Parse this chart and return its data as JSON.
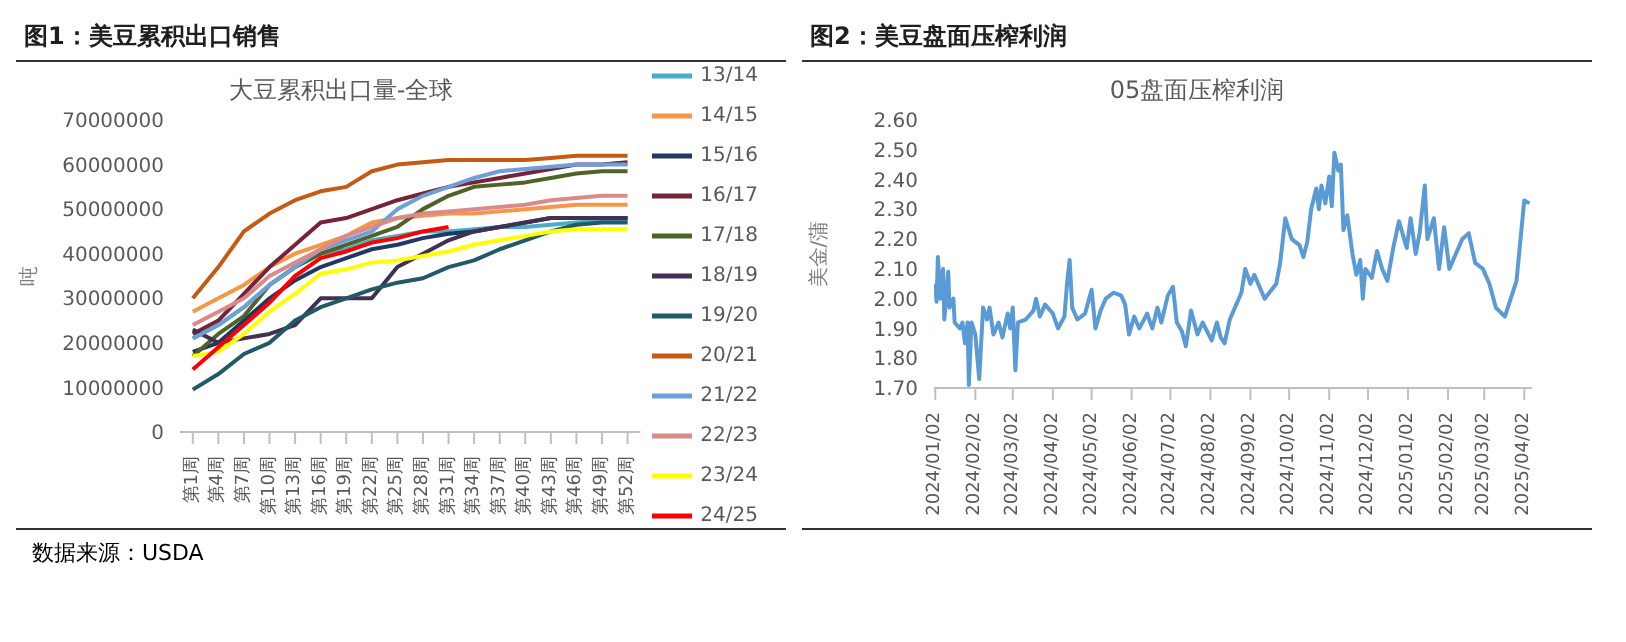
{
  "chart_data": [
    {
      "type": "line",
      "title": "图1：美豆累积出口销售",
      "subtitle": "大豆累积出口量-全球",
      "ylabel": "吨",
      "categories": [
        "第1周",
        "第4周",
        "第7周",
        "第10周",
        "第13周",
        "第16周",
        "第19周",
        "第22周",
        "第25周",
        "第28周",
        "第31周",
        "第34周",
        "第37周",
        "第40周",
        "第43周",
        "第46周",
        "第49周",
        "第52周"
      ],
      "series": [
        {
          "name": "13/14",
          "color": "#4bacc6",
          "values": [
            21000000,
            24000000,
            28000000,
            33000000,
            37000000,
            40000000,
            41000000,
            43000000,
            44000000,
            45000000,
            45000000,
            45500000,
            46000000,
            46000000,
            46500000,
            47000000,
            47500000,
            47500000
          ]
        },
        {
          "name": "14/15",
          "color": "#f79646",
          "values": [
            27000000,
            30000000,
            33000000,
            37000000,
            40000000,
            42000000,
            44000000,
            47000000,
            48000000,
            48500000,
            49000000,
            49000000,
            49500000,
            50000000,
            50500000,
            51000000,
            51000000,
            51000000
          ]
        },
        {
          "name": "15/16",
          "color": "#1f3864",
          "values": [
            18000000,
            20000000,
            25000000,
            30000000,
            34000000,
            37000000,
            39000000,
            41000000,
            42000000,
            43500000,
            44500000,
            45000000,
            46000000,
            47000000,
            48000000,
            48000000,
            48000000,
            48000000
          ]
        },
        {
          "name": "16/17",
          "color": "#772236",
          "values": [
            22000000,
            25000000,
            31000000,
            37000000,
            42000000,
            47000000,
            48000000,
            50000000,
            52000000,
            53500000,
            55000000,
            56000000,
            57000000,
            58000000,
            59000000,
            60000000,
            60000000,
            60500000
          ]
        },
        {
          "name": "17/18",
          "color": "#4f6228",
          "values": [
            17000000,
            22000000,
            26000000,
            33000000,
            37000000,
            40000000,
            42000000,
            44000000,
            46000000,
            50000000,
            53000000,
            55000000,
            55500000,
            56000000,
            57000000,
            58000000,
            58500000,
            58500000
          ]
        },
        {
          "name": "18/19",
          "color": "#403151",
          "values": [
            23000000,
            20000000,
            21000000,
            22000000,
            24000000,
            30000000,
            30000000,
            30000000,
            37000000,
            40000000,
            43000000,
            45000000,
            46000000,
            47000000,
            48000000,
            48000000,
            48000000,
            48000000
          ]
        },
        {
          "name": "19/20",
          "color": "#215967",
          "values": [
            9500000,
            13000000,
            17500000,
            20000000,
            25000000,
            28000000,
            30000000,
            32000000,
            33500000,
            34500000,
            37000000,
            38500000,
            41000000,
            43000000,
            45000000,
            46500000,
            47000000,
            47000000
          ]
        },
        {
          "name": "20/21",
          "color": "#c55a11",
          "values": [
            30000000,
            37000000,
            45000000,
            49000000,
            52000000,
            54000000,
            55000000,
            58500000,
            60000000,
            60500000,
            61000000,
            61000000,
            61000000,
            61000000,
            61500000,
            62000000,
            62000000,
            62000000
          ]
        },
        {
          "name": "21/22",
          "color": "#6f9fd8",
          "values": [
            21000000,
            24000000,
            28000000,
            33000000,
            37000000,
            41000000,
            43000000,
            45000000,
            50000000,
            53000000,
            55000000,
            57000000,
            58500000,
            59000000,
            59500000,
            60000000,
            60000000,
            60000000
          ]
        },
        {
          "name": "22/23",
          "color": "#da8a8a",
          "values": [
            24000000,
            27000000,
            30000000,
            35000000,
            38000000,
            41000000,
            44000000,
            46000000,
            48000000,
            49000000,
            49500000,
            50000000,
            50500000,
            51000000,
            52000000,
            52500000,
            53000000,
            53000000
          ]
        },
        {
          "name": "23/24",
          "color": "#ffff00",
          "values": [
            17000000,
            18000000,
            22000000,
            27000000,
            31000000,
            35500000,
            36500000,
            38000000,
            38500000,
            39500000,
            40500000,
            42000000,
            43000000,
            44000000,
            45000000,
            45500000,
            45500000,
            45500000
          ]
        },
        {
          "name": "24/25",
          "color": "#ff0000",
          "values": [
            14000000,
            19000000,
            24000000,
            29000000,
            35000000,
            39000000,
            40500000,
            42500000,
            43500000,
            45000000,
            46000000,
            null,
            null,
            null,
            null,
            null,
            null,
            null
          ]
        }
      ],
      "ylim": [
        0,
        70000000
      ],
      "yticks": [
        0,
        10000000,
        20000000,
        30000000,
        40000000,
        50000000,
        60000000,
        70000000
      ],
      "legend": "right",
      "annotations": [
        "数据来源：USDA"
      ]
    },
    {
      "type": "line",
      "title": "图2：美豆盘面压榨利润",
      "subtitle": "05盘面压榨利润",
      "ylabel": "美金/蒲",
      "x": [
        "2024-01-02",
        "2024-01-03",
        "2024-01-04",
        "2024-01-06",
        "2024-01-08",
        "2024-01-09",
        "2024-01-12",
        "2024-01-13",
        "2024-01-16",
        "2024-01-17",
        "2024-01-21",
        "2024-01-23",
        "2024-01-25",
        "2024-01-27",
        "2024-01-28",
        "2024-01-30",
        "2024-02-02",
        "2024-02-05",
        "2024-02-08",
        "2024-02-11",
        "2024-02-13",
        "2024-02-16",
        "2024-02-20",
        "2024-02-23",
        "2024-02-27",
        "2024-02-29",
        "2024-03-02",
        "2024-03-04",
        "2024-03-06",
        "2024-03-12",
        "2024-03-18",
        "2024-03-20",
        "2024-03-23",
        "2024-03-27",
        "2024-04-02",
        "2024-04-06",
        "2024-04-11",
        "2024-04-13",
        "2024-04-15",
        "2024-04-17",
        "2024-04-21",
        "2024-04-27",
        "2024-05-02",
        "2024-05-05",
        "2024-05-09",
        "2024-05-13",
        "2024-05-19",
        "2024-05-25",
        "2024-05-28",
        "2024-05-31",
        "2024-06-04",
        "2024-06-08",
        "2024-06-14",
        "2024-06-18",
        "2024-06-22",
        "2024-06-25",
        "2024-06-30",
        "2024-07-04",
        "2024-07-07",
        "2024-07-11",
        "2024-07-14",
        "2024-07-18",
        "2024-07-23",
        "2024-07-27",
        "2024-08-03",
        "2024-08-07",
        "2024-08-10",
        "2024-08-13",
        "2024-08-17",
        "2024-08-22",
        "2024-08-26",
        "2024-08-29",
        "2024-09-02",
        "2024-09-05",
        "2024-09-10",
        "2024-09-13",
        "2024-09-22",
        "2024-09-25",
        "2024-09-29",
        "2024-10-04",
        "2024-10-10",
        "2024-10-13",
        "2024-10-16",
        "2024-10-19",
        "2024-10-23",
        "2024-10-25",
        "2024-10-27",
        "2024-10-30",
        "2024-11-02",
        "2024-11-04",
        "2024-11-06",
        "2024-11-09",
        "2024-11-11",
        "2024-11-13",
        "2024-11-16",
        "2024-11-20",
        "2024-11-23",
        "2024-11-26",
        "2024-11-28",
        "2024-11-30",
        "2024-12-05",
        "2024-12-09",
        "2024-12-13",
        "2024-12-17",
        "2024-12-22",
        "2024-12-26",
        "2025-01-01",
        "2025-01-04",
        "2025-01-08",
        "2025-01-11",
        "2025-01-15",
        "2025-01-17",
        "2025-01-22",
        "2025-01-26",
        "2025-01-30",
        "2025-02-03",
        "2025-02-08",
        "2025-02-13",
        "2025-02-18",
        "2025-02-23",
        "2025-03-01",
        "2025-03-06",
        "2025-03-11",
        "2025-03-18",
        "2025-03-27",
        "2025-04-02",
        "2025-04-06"
      ],
      "series": [
        {
          "color": "#5b9bd5",
          "values": [
            2.05,
            1.99,
            2.14,
            2.0,
            2.1,
            1.93,
            2.09,
            1.97,
            2.0,
            1.92,
            1.9,
            1.92,
            1.85,
            1.92,
            1.71,
            1.92,
            1.88,
            1.73,
            1.97,
            1.93,
            1.97,
            1.88,
            1.92,
            1.87,
            1.95,
            1.9,
            1.97,
            1.76,
            1.92,
            1.93,
            1.96,
            2.0,
            1.94,
            1.98,
            1.95,
            1.9,
            1.94,
            2.05,
            2.13,
            1.97,
            1.93,
            1.95,
            2.03,
            1.9,
            1.96,
            2.0,
            2.02,
            2.01,
            1.98,
            1.88,
            1.94,
            1.9,
            1.95,
            1.9,
            1.97,
            1.92,
            2.01,
            2.04,
            1.92,
            1.89,
            1.84,
            1.96,
            1.88,
            1.92,
            1.86,
            1.92,
            1.87,
            1.85,
            1.93,
            1.98,
            2.02,
            2.1,
            2.05,
            2.08,
            2.03,
            2.0,
            2.05,
            2.12,
            2.27,
            2.2,
            2.18,
            2.14,
            2.19,
            2.3,
            2.37,
            2.3,
            2.38,
            2.32,
            2.41,
            2.31,
            2.49,
            2.43,
            2.45,
            2.23,
            2.28,
            2.15,
            2.08,
            2.13,
            2.0,
            2.1,
            2.07,
            2.16,
            2.1,
            2.06,
            2.18,
            2.26,
            2.17,
            2.27,
            2.15,
            2.22,
            2.38,
            2.2,
            2.27,
            2.1,
            2.24,
            2.1,
            2.15,
            2.2,
            2.22,
            2.12,
            2.1,
            2.05,
            1.97,
            1.94,
            2.06,
            2.33,
            2.32
          ]
        }
      ],
      "xlim": [
        "2024-01-01",
        "2025-04-08"
      ],
      "xticks": [
        {
          "value": "2024-01-02",
          "label": "2024/01/02"
        },
        {
          "value": "2024-02-02",
          "label": "2024/02/02"
        },
        {
          "value": "2024-03-02",
          "label": "2024/03/02"
        },
        {
          "value": "2024-04-02",
          "label": "2024/04/02"
        },
        {
          "value": "2024-05-02",
          "label": "2024/05/02"
        },
        {
          "value": "2024-06-02",
          "label": "2024/06/02"
        },
        {
          "value": "2024-07-02",
          "label": "2024/07/02"
        },
        {
          "value": "2024-08-02",
          "label": "2024/08/02"
        },
        {
          "value": "2024-09-02",
          "label": "2024/09/02"
        },
        {
          "value": "2024-10-02",
          "label": "2024/10/02"
        },
        {
          "value": "2024-11-02",
          "label": "2024/11/02"
        },
        {
          "value": "2024-12-02",
          "label": "2024/12/02"
        },
        {
          "value": "2025-01-02",
          "label": "2025/01/02"
        },
        {
          "value": "2025-02-02",
          "label": "2025/02/02"
        },
        {
          "value": "2025-03-02",
          "label": "2025/03/02"
        },
        {
          "value": "2025-04-02",
          "label": "2025/04/02"
        }
      ],
      "ylim": [
        1.7,
        2.6
      ],
      "yticks": [
        {
          "value": 1.7,
          "label": "1.70"
        },
        {
          "value": 1.8,
          "label": "1.80"
        },
        {
          "value": 1.9,
          "label": "1.90"
        },
        {
          "value": 2.0,
          "label": "2.00"
        },
        {
          "value": 2.1,
          "label": "2.10"
        },
        {
          "value": 2.2,
          "label": "2.20"
        },
        {
          "value": 2.3,
          "label": "2.30"
        },
        {
          "value": 2.4,
          "label": "2.40"
        },
        {
          "value": 2.5,
          "label": "2.50"
        },
        {
          "value": 2.6,
          "label": "2.60"
        }
      ]
    }
  ]
}
